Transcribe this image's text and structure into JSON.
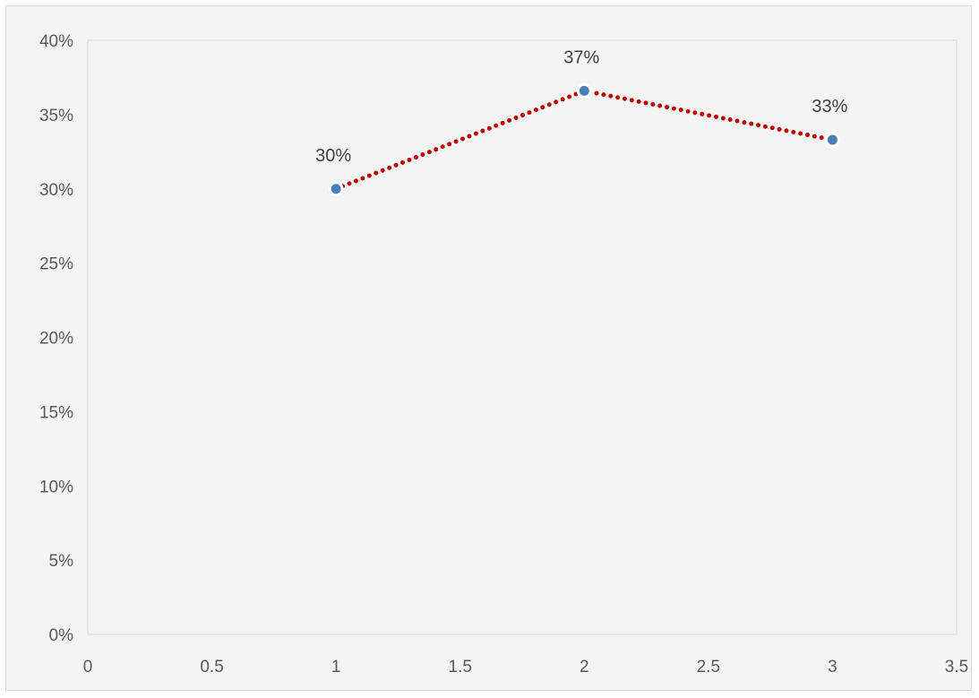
{
  "chart_data": {
    "type": "scatter",
    "title": "",
    "xlabel": "",
    "ylabel": "",
    "xlim": [
      0,
      3.5
    ],
    "ylim": [
      0,
      0.4
    ],
    "x_ticks": [
      0,
      0.5,
      1,
      1.5,
      2,
      2.5,
      3,
      3.5
    ],
    "x_tick_labels": [
      "0",
      "0.5",
      "1",
      "1.5",
      "2",
      "2.5",
      "3",
      "3.5"
    ],
    "y_ticks": [
      0,
      0.05,
      0.1,
      0.15,
      0.2,
      0.25,
      0.3,
      0.35,
      0.4
    ],
    "y_tick_labels": [
      "0%",
      "5%",
      "10%",
      "15%",
      "20%",
      "25%",
      "30%",
      "35%",
      "40%"
    ],
    "grid": false,
    "legend": "none",
    "series": [
      {
        "x": [
          1,
          2,
          3
        ],
        "y": [
          0.3,
          0.366,
          0.333
        ],
        "data_labels": [
          "30%",
          "37%",
          "33%"
        ],
        "marker_color": "#4a7ebb",
        "line_color": "#c00000",
        "line_style": "dotted"
      }
    ]
  }
}
